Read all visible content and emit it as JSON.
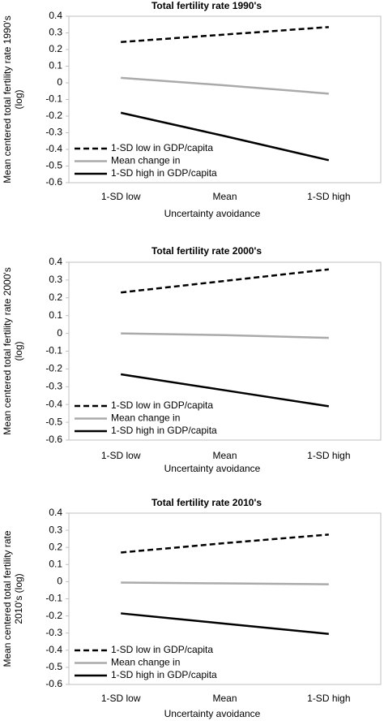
{
  "chart_data": [
    {
      "type": "line",
      "title": "Total fertility rate 1990's",
      "ylabel": [
        "Mean centered total fertility rate 1990's",
        "(log)"
      ],
      "xlabel": "Uncertainty avoidance",
      "categories": [
        "1-SD low",
        "Mean",
        "1-SD high"
      ],
      "series": [
        {
          "name": "1-SD low in GDP/capita",
          "color": "#000000",
          "style": "dashed",
          "values": [
            0.245,
            0.29,
            0.335
          ]
        },
        {
          "name": "Mean change in",
          "color": "#aaaaaa",
          "style": "solid",
          "values": [
            0.03,
            -0.015,
            -0.065
          ]
        },
        {
          "name": "1-SD high in GDP/capita",
          "color": "#000000",
          "style": "solid",
          "values": [
            -0.18,
            -0.32,
            -0.465
          ]
        }
      ],
      "ylim": [
        -0.6,
        0.4
      ],
      "yticks": [
        0.4,
        0.3,
        0.2,
        0.1,
        0,
        -0.1,
        -0.2,
        -0.3,
        -0.4,
        -0.5,
        -0.6
      ],
      "legend": "lower left"
    },
    {
      "type": "line",
      "title": "Total fertility rate 2000's",
      "ylabel": [
        "Mean centered total fertility rate 2000's",
        "(log)"
      ],
      "xlabel": "Uncertainty avoidance",
      "categories": [
        "1-SD low",
        "Mean",
        "1-SD high"
      ],
      "series": [
        {
          "name": "1-SD low in GDP/capita",
          "color": "#000000",
          "style": "dashed",
          "values": [
            0.23,
            0.295,
            0.36
          ]
        },
        {
          "name": "Mean change in",
          "color": "#aaaaaa",
          "style": "solid",
          "values": [
            0,
            -0.01,
            -0.025
          ]
        },
        {
          "name": "1-SD high in GDP/capita",
          "color": "#000000",
          "style": "solid",
          "values": [
            -0.23,
            -0.32,
            -0.41
          ]
        }
      ],
      "ylim": [
        -0.6,
        0.4
      ],
      "yticks": [
        0.4,
        0.3,
        0.2,
        0.1,
        0,
        -0.1,
        -0.2,
        -0.3,
        -0.4,
        -0.5,
        -0.6
      ],
      "legend": "lower left"
    },
    {
      "type": "line",
      "title": "Total fertility rate 2010's",
      "ylabel": [
        "Mean centered total fertility rate",
        "2010's (log)"
      ],
      "xlabel": "Uncertainty avoidance",
      "categories": [
        "1-SD low",
        "Mean",
        "1-SD high"
      ],
      "series": [
        {
          "name": "1-SD low in GDP/capita",
          "color": "#000000",
          "style": "dashed",
          "values": [
            0.17,
            0.225,
            0.275
          ]
        },
        {
          "name": "Mean change in",
          "color": "#aaaaaa",
          "style": "solid",
          "values": [
            -0.005,
            -0.01,
            -0.015
          ]
        },
        {
          "name": "1-SD high in GDP/capita",
          "color": "#000000",
          "style": "solid",
          "values": [
            -0.185,
            -0.245,
            -0.305
          ]
        }
      ],
      "ylim": [
        -0.6,
        0.4
      ],
      "yticks": [
        0.4,
        0.3,
        0.2,
        0.1,
        0,
        -0.1,
        -0.2,
        -0.3,
        -0.4,
        -0.5,
        -0.6
      ],
      "legend": "lower left"
    }
  ]
}
